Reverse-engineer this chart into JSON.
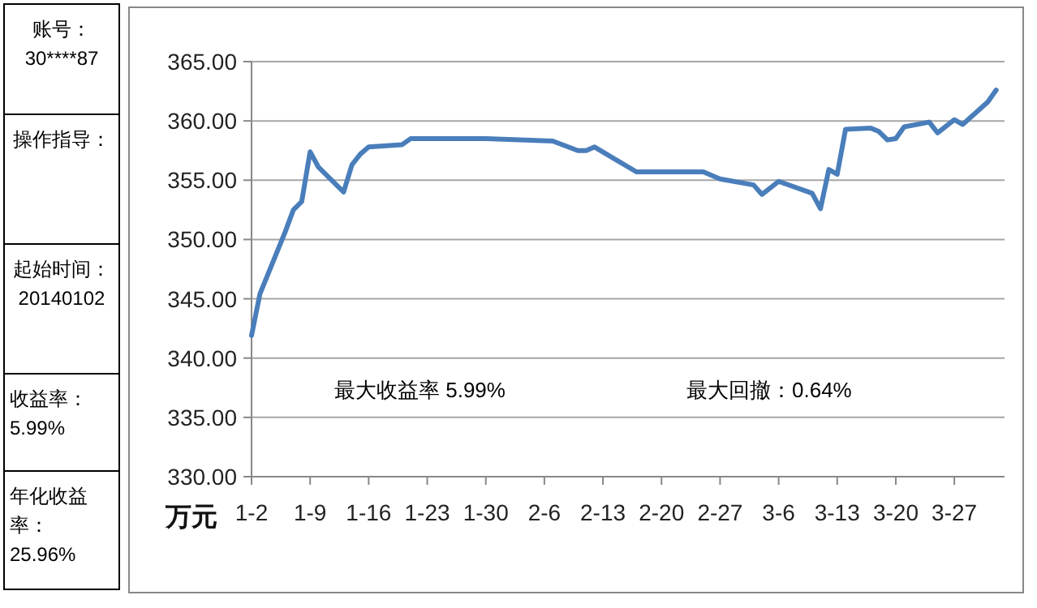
{
  "chart_data": [
    {
      "type": "line",
      "ylabel": "万元",
      "x": [
        "2014-01-02",
        "2014-01-03",
        "2014-01-06",
        "2014-01-07",
        "2014-01-08",
        "2014-01-09",
        "2014-01-10",
        "2014-01-13",
        "2014-01-14",
        "2014-01-15",
        "2014-01-16",
        "2014-01-20",
        "2014-01-21",
        "2014-01-30",
        "2014-02-07",
        "2014-02-10",
        "2014-02-11",
        "2014-02-12",
        "2014-02-17",
        "2014-02-25",
        "2014-02-27",
        "2014-03-03",
        "2014-03-04",
        "2014-03-06",
        "2014-03-10",
        "2014-03-11",
        "2014-03-12",
        "2014-03-13",
        "2014-03-14",
        "2014-03-17",
        "2014-03-18",
        "2014-03-19",
        "2014-03-20",
        "2014-03-21",
        "2014-03-24",
        "2014-03-25",
        "2014-03-27",
        "2014-03-28",
        "2014-03-31",
        "2014-04-01"
      ],
      "series": [
        {
          "color": "#4a7ebb",
          "values": [
            341.9,
            345.4,
            350.6,
            352.5,
            353.2,
            357.4,
            356.1,
            354.0,
            356.3,
            357.2,
            357.8,
            358.0,
            358.5,
            358.5,
            358.3,
            357.5,
            357.5,
            357.8,
            355.7,
            355.7,
            355.1,
            354.6,
            353.8,
            354.9,
            353.9,
            352.6,
            355.9,
            355.5,
            359.3,
            359.4,
            359.1,
            358.4,
            358.5,
            359.5,
            359.9,
            359.0,
            360.1,
            359.7,
            361.6,
            362.6
          ]
        }
      ],
      "xlim": [
        "2014-01-02",
        "2014-04-02"
      ],
      "xticks": [
        {
          "value": "2014-01-02",
          "label": "1-2"
        },
        {
          "value": "2014-01-09",
          "label": "1-9"
        },
        {
          "value": "2014-01-16",
          "label": "1-16"
        },
        {
          "value": "2014-01-23",
          "label": "1-23"
        },
        {
          "value": "2014-01-30",
          "label": "1-30"
        },
        {
          "value": "2014-02-06",
          "label": "2-6"
        },
        {
          "value": "2014-02-13",
          "label": "2-13"
        },
        {
          "value": "2014-02-20",
          "label": "2-20"
        },
        {
          "value": "2014-02-27",
          "label": "2-27"
        },
        {
          "value": "2014-03-06",
          "label": "3-6"
        },
        {
          "value": "2014-03-13",
          "label": "3-13"
        },
        {
          "value": "2014-03-20",
          "label": "3-20"
        },
        {
          "value": "2014-03-27",
          "label": "3-27"
        }
      ],
      "ylim": [
        330,
        365
      ],
      "yticks": [
        {
          "value": 330,
          "label": "330.00"
        },
        {
          "value": 335,
          "label": "335.00"
        },
        {
          "value": 340,
          "label": "340.00"
        },
        {
          "value": 345,
          "label": "345.00"
        },
        {
          "value": 350,
          "label": "350.00"
        },
        {
          "value": 355,
          "label": "355.00"
        },
        {
          "value": 360,
          "label": "360.00"
        },
        {
          "value": 365,
          "label": "365.00"
        }
      ],
      "grid": "y",
      "marker": "none",
      "line_style": "solid",
      "annotations": [
        "最大收益率 5.99%",
        "最大回撤：0.64%"
      ]
    },
    {
      "type": "other",
      "annotations": [
        "账号：30****87",
        "操作指导：",
        "起始时间：20140102",
        "收益率：5.99%",
        "年化收益率：25.96%"
      ]
    }
  ]
}
